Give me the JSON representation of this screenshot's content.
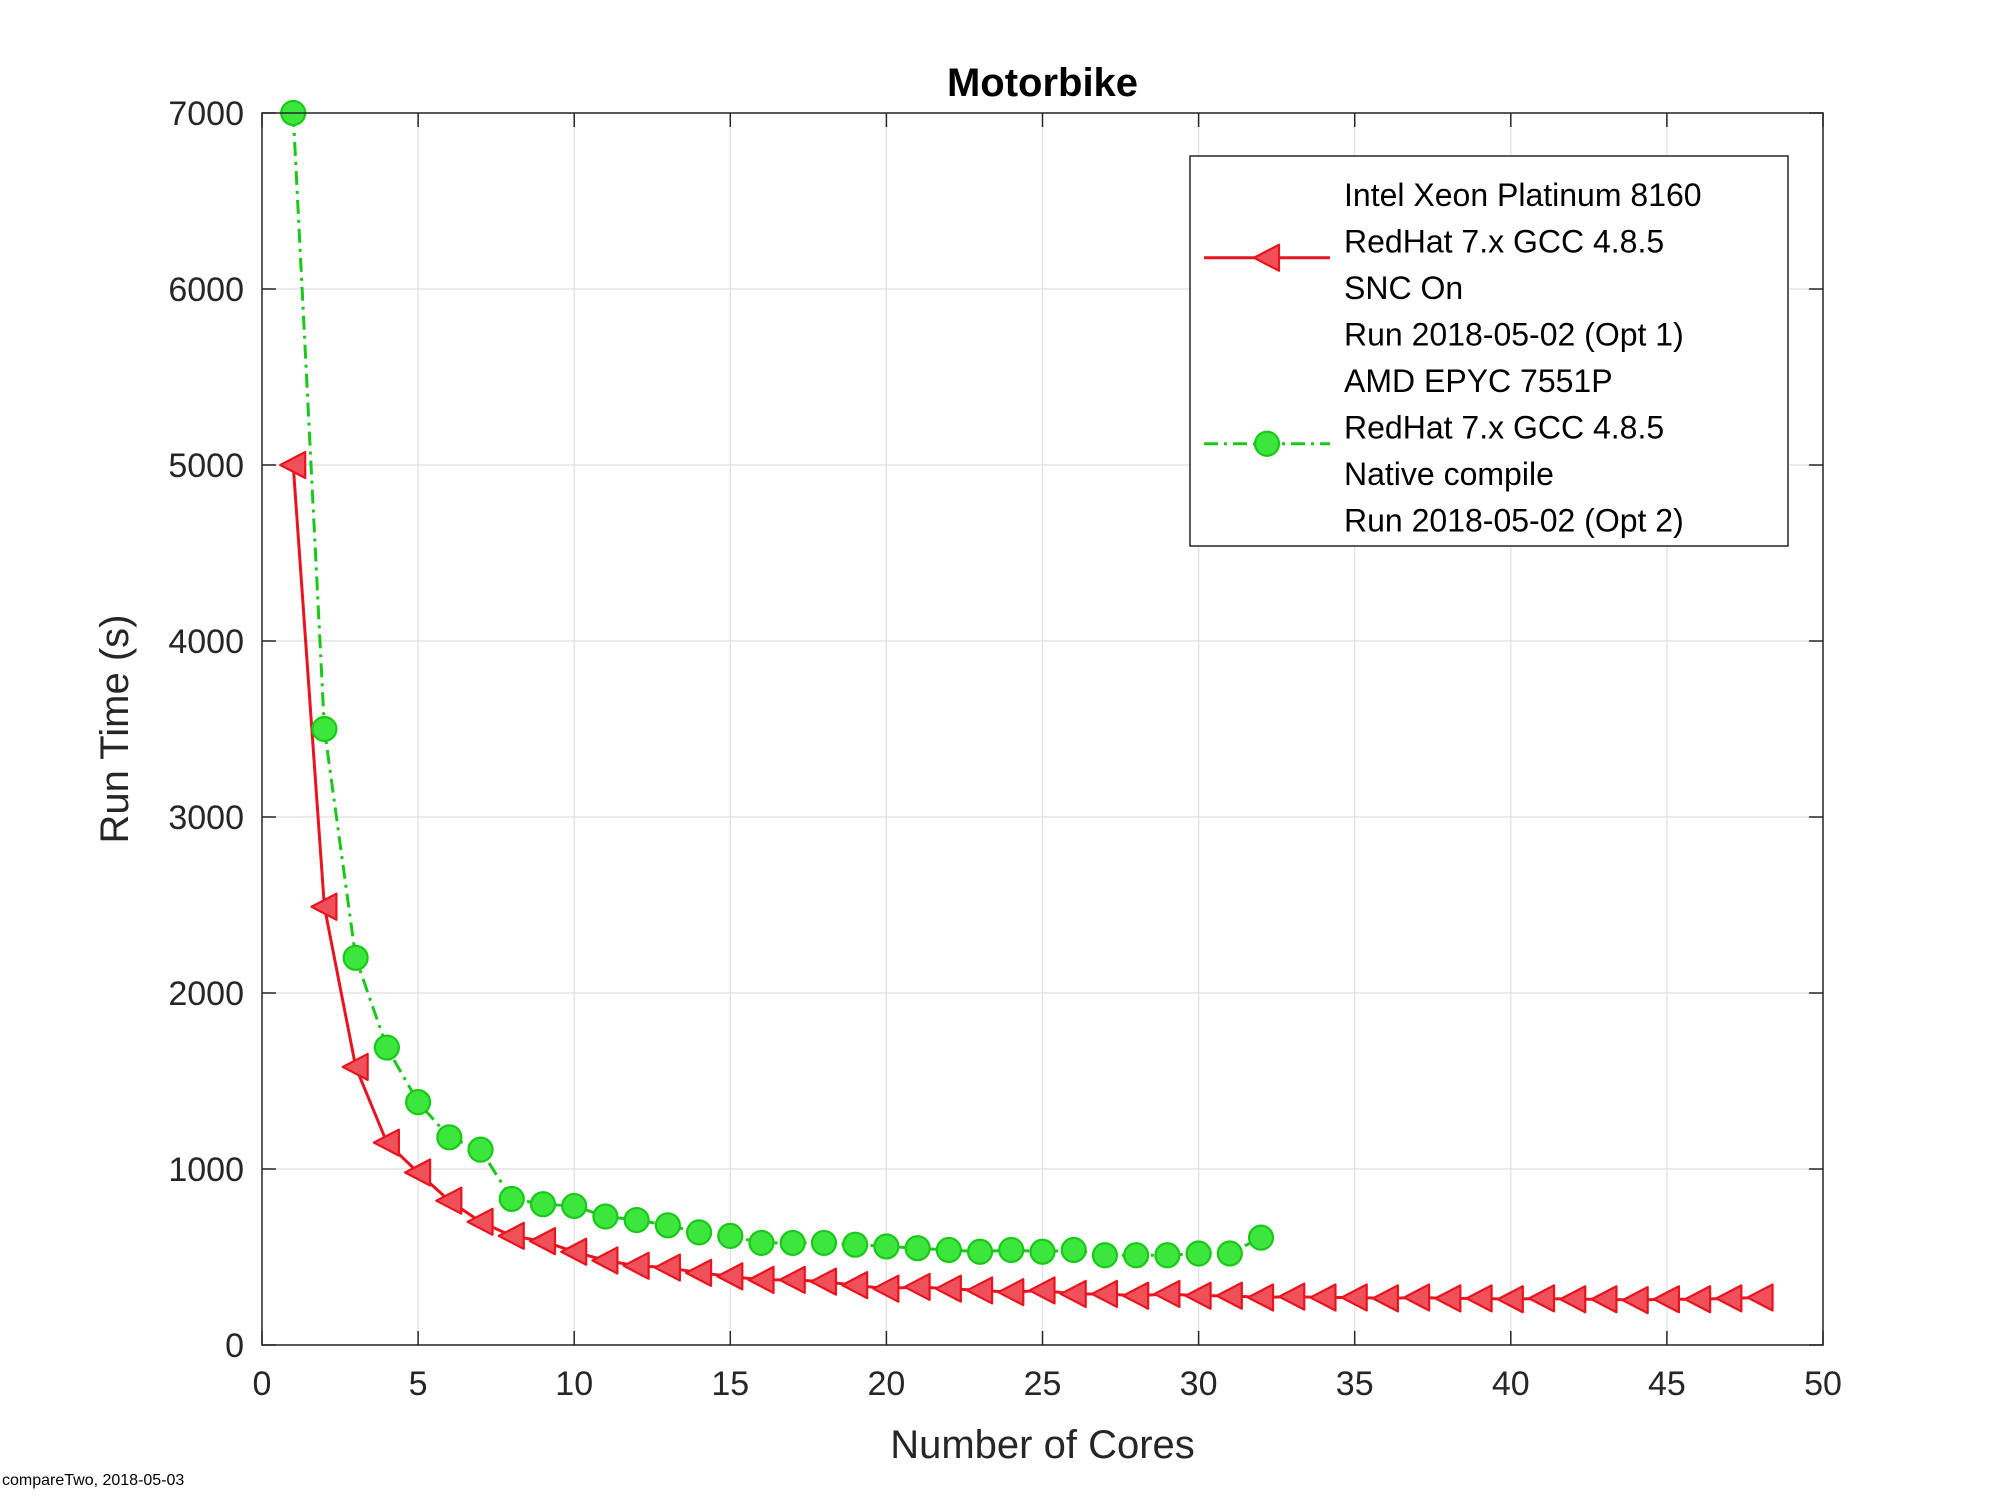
{
  "chart_data": {
    "type": "line",
    "title": "Motorbike",
    "xlabel": "Number of Cores",
    "ylabel": "Run Time (s)",
    "xlim": [
      0,
      50
    ],
    "ylim": [
      0,
      7000
    ],
    "xticks": [
      0,
      5,
      10,
      15,
      20,
      25,
      30,
      35,
      40,
      45,
      50
    ],
    "yticks": [
      0,
      1000,
      2000,
      3000,
      4000,
      5000,
      6000,
      7000
    ],
    "grid": true,
    "legend_position": "top-right",
    "series": [
      {
        "name_lines": [
          "Intel Xeon Platinum 8160",
          "RedHat 7.x GCC 4.8.5",
          "SNC On",
          "Run 2018-05-02 (Opt 1)"
        ],
        "color": "#e8141e",
        "fill": "#f0505a",
        "marker": "triangle-left",
        "line_style": "solid",
        "x": [
          1,
          2,
          3,
          4,
          5,
          6,
          7,
          8,
          9,
          10,
          11,
          12,
          13,
          14,
          15,
          16,
          17,
          18,
          19,
          20,
          21,
          22,
          23,
          24,
          25,
          26,
          27,
          28,
          29,
          30,
          31,
          32,
          33,
          34,
          35,
          36,
          37,
          38,
          39,
          40,
          41,
          42,
          43,
          44,
          45,
          46,
          47,
          48
        ],
        "y": [
          5000,
          2490,
          1580,
          1150,
          980,
          820,
          700,
          620,
          590,
          530,
          480,
          450,
          440,
          410,
          390,
          370,
          370,
          360,
          340,
          320,
          330,
          320,
          310,
          300,
          310,
          290,
          290,
          280,
          290,
          280,
          280,
          270,
          275,
          270,
          270,
          265,
          270,
          265,
          265,
          260,
          265,
          260,
          260,
          255,
          260,
          260,
          265,
          270
        ]
      },
      {
        "name_lines": [
          "AMD EPYC 7551P",
          "RedHat 7.x GCC 4.8.5",
          "Native compile",
          "Run 2018-05-02 (Opt 2)"
        ],
        "color": "#19c819",
        "fill": "#3ce63c",
        "marker": "circle",
        "line_style": "dash-dot",
        "x": [
          1,
          2,
          3,
          4,
          5,
          6,
          7,
          8,
          9,
          10,
          11,
          12,
          13,
          14,
          15,
          16,
          17,
          18,
          19,
          20,
          21,
          22,
          23,
          24,
          25,
          26,
          27,
          28,
          29,
          30,
          31,
          32
        ],
        "y": [
          7000,
          3500,
          2200,
          1690,
          1380,
          1180,
          1110,
          830,
          800,
          790,
          730,
          710,
          680,
          640,
          620,
          580,
          580,
          580,
          570,
          560,
          550,
          540,
          530,
          540,
          530,
          540,
          510,
          510,
          510,
          520,
          520,
          610
        ]
      }
    ]
  },
  "footer": "compareTwo, 2018-05-03"
}
